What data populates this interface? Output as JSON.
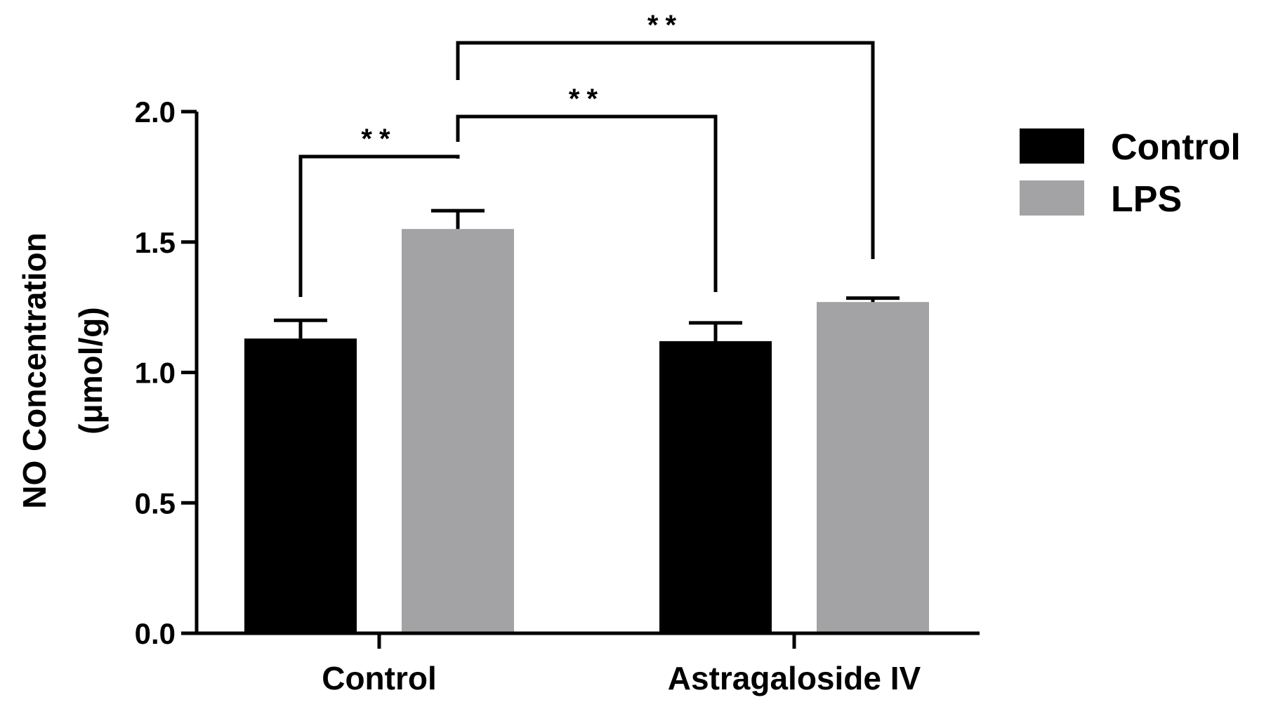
{
  "chart_data": {
    "type": "bar",
    "title": "",
    "xlabel": "",
    "ylabel_line1": "NO Concentration",
    "ylabel_line2": "(μmol/g)",
    "ylim": [
      0,
      2.0
    ],
    "yticks": [
      "0.0",
      "0.5",
      "1.0",
      "1.5",
      "2.0"
    ],
    "ytick_values": [
      0,
      0.5,
      1.0,
      1.5,
      2.0
    ],
    "categories": [
      "Control",
      "Astragaloside IV"
    ],
    "series": [
      {
        "name": "Control",
        "color": "#000000",
        "values": [
          1.13,
          1.12
        ],
        "errors": [
          0.07,
          0.07
        ]
      },
      {
        "name": "LPS",
        "color": "#a3a3a6",
        "values": [
          1.55,
          1.27
        ],
        "errors": [
          0.07,
          0.015
        ]
      }
    ],
    "legend_position": "right",
    "significance": [
      {
        "label": "**",
        "from": [
          0,
          0
        ],
        "to": [
          0,
          1
        ]
      },
      {
        "label": "**",
        "from": [
          0,
          1
        ],
        "to": [
          1,
          0
        ]
      },
      {
        "label": "**",
        "from": [
          0,
          1
        ],
        "to": [
          1,
          1
        ]
      }
    ]
  }
}
